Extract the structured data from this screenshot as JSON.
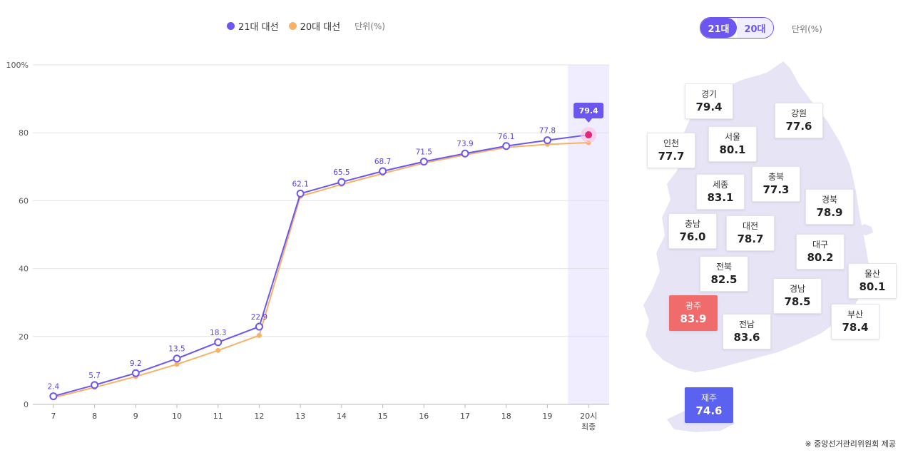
{
  "legend": {
    "series_a": "21대 대선",
    "series_b": "20대 대선",
    "unit": "단위(%)",
    "color_a": "#6b57f0",
    "color_b": "#f7b267"
  },
  "chart_data": {
    "type": "line",
    "categories": [
      "7",
      "8",
      "9",
      "10",
      "11",
      "12",
      "13",
      "14",
      "15",
      "16",
      "17",
      "18",
      "19",
      "20시 최종"
    ],
    "series": [
      {
        "name": "21대 대선",
        "values": [
          2.4,
          5.7,
          9.2,
          13.5,
          18.3,
          22.9,
          62.1,
          65.5,
          68.7,
          71.5,
          73.9,
          76.1,
          77.8,
          79.4
        ],
        "color": "#6b57f0"
      },
      {
        "name": "20대 대선",
        "values": [
          2.0,
          5.0,
          8.2,
          11.8,
          15.9,
          20.3,
          61.3,
          64.8,
          68.0,
          71.1,
          73.5,
          75.7,
          76.6,
          77.1
        ],
        "color": "#f7b267"
      }
    ],
    "value_labels": [
      "2.4",
      "5.7",
      "9.2",
      "13.5",
      "18.3",
      "22.9",
      "62.1",
      "65.5",
      "68.7",
      "71.5",
      "73.9",
      "76.1",
      "77.8"
    ],
    "final_label": "79.4",
    "yticks": [
      "0",
      "20",
      "40",
      "60",
      "80",
      "100%"
    ],
    "ylim": [
      0,
      100
    ],
    "grid": true
  },
  "map": {
    "toggle": {
      "active": "21대",
      "inactive": "20대"
    },
    "unit": "단위(%)",
    "regions": [
      {
        "name": "경기",
        "value": "79.4"
      },
      {
        "name": "강원",
        "value": "77.6"
      },
      {
        "name": "인천",
        "value": "77.7"
      },
      {
        "name": "서울",
        "value": "80.1"
      },
      {
        "name": "세종",
        "value": "83.1"
      },
      {
        "name": "충북",
        "value": "77.3"
      },
      {
        "name": "경북",
        "value": "78.9"
      },
      {
        "name": "충남",
        "value": "76.0"
      },
      {
        "name": "대전",
        "value": "78.7"
      },
      {
        "name": "대구",
        "value": "80.2"
      },
      {
        "name": "전북",
        "value": "82.5"
      },
      {
        "name": "울산",
        "value": "80.1"
      },
      {
        "name": "광주",
        "value": "83.9"
      },
      {
        "name": "경남",
        "value": "78.5"
      },
      {
        "name": "부산",
        "value": "78.4"
      },
      {
        "name": "전남",
        "value": "83.6"
      },
      {
        "name": "제주",
        "value": "74.6"
      }
    ],
    "highest_color": "#f06b6b",
    "lowest_color": "#5b62f0"
  },
  "source": "※ 중앙선거관리위원회 제공"
}
